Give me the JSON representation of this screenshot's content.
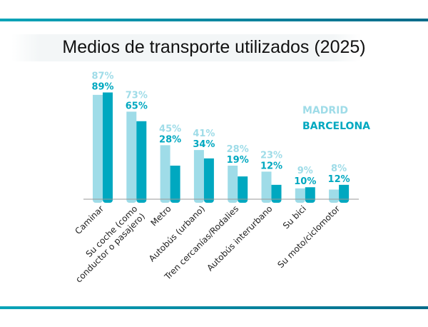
{
  "chart_data": {
    "type": "bar",
    "title": "Medios de transporte utilizados (2025)",
    "categories": [
      [
        "Caminar"
      ],
      [
        "Su coche (como",
        "conductor o pasajero)"
      ],
      [
        "Metro"
      ],
      [
        "Autobús (urbano)"
      ],
      [
        "Tren cercanías/Rodalies"
      ],
      [
        "Autobús interurbano"
      ],
      [
        "Su bici"
      ],
      [
        "Su moto/ciclomotor"
      ]
    ],
    "series": [
      {
        "name": "MADRID",
        "color": "#9fdce8",
        "values": [
          87,
          73,
          45,
          41,
          28,
          23,
          9,
          8
        ]
      },
      {
        "name": "BARCELONA",
        "color": "#00a8c0",
        "values": [
          89,
          65,
          28,
          34,
          19,
          12,
          10,
          12
        ]
      }
    ],
    "value_suffix": "%",
    "ylim": [
      0,
      100
    ],
    "grid": false,
    "legend_position": "right"
  }
}
